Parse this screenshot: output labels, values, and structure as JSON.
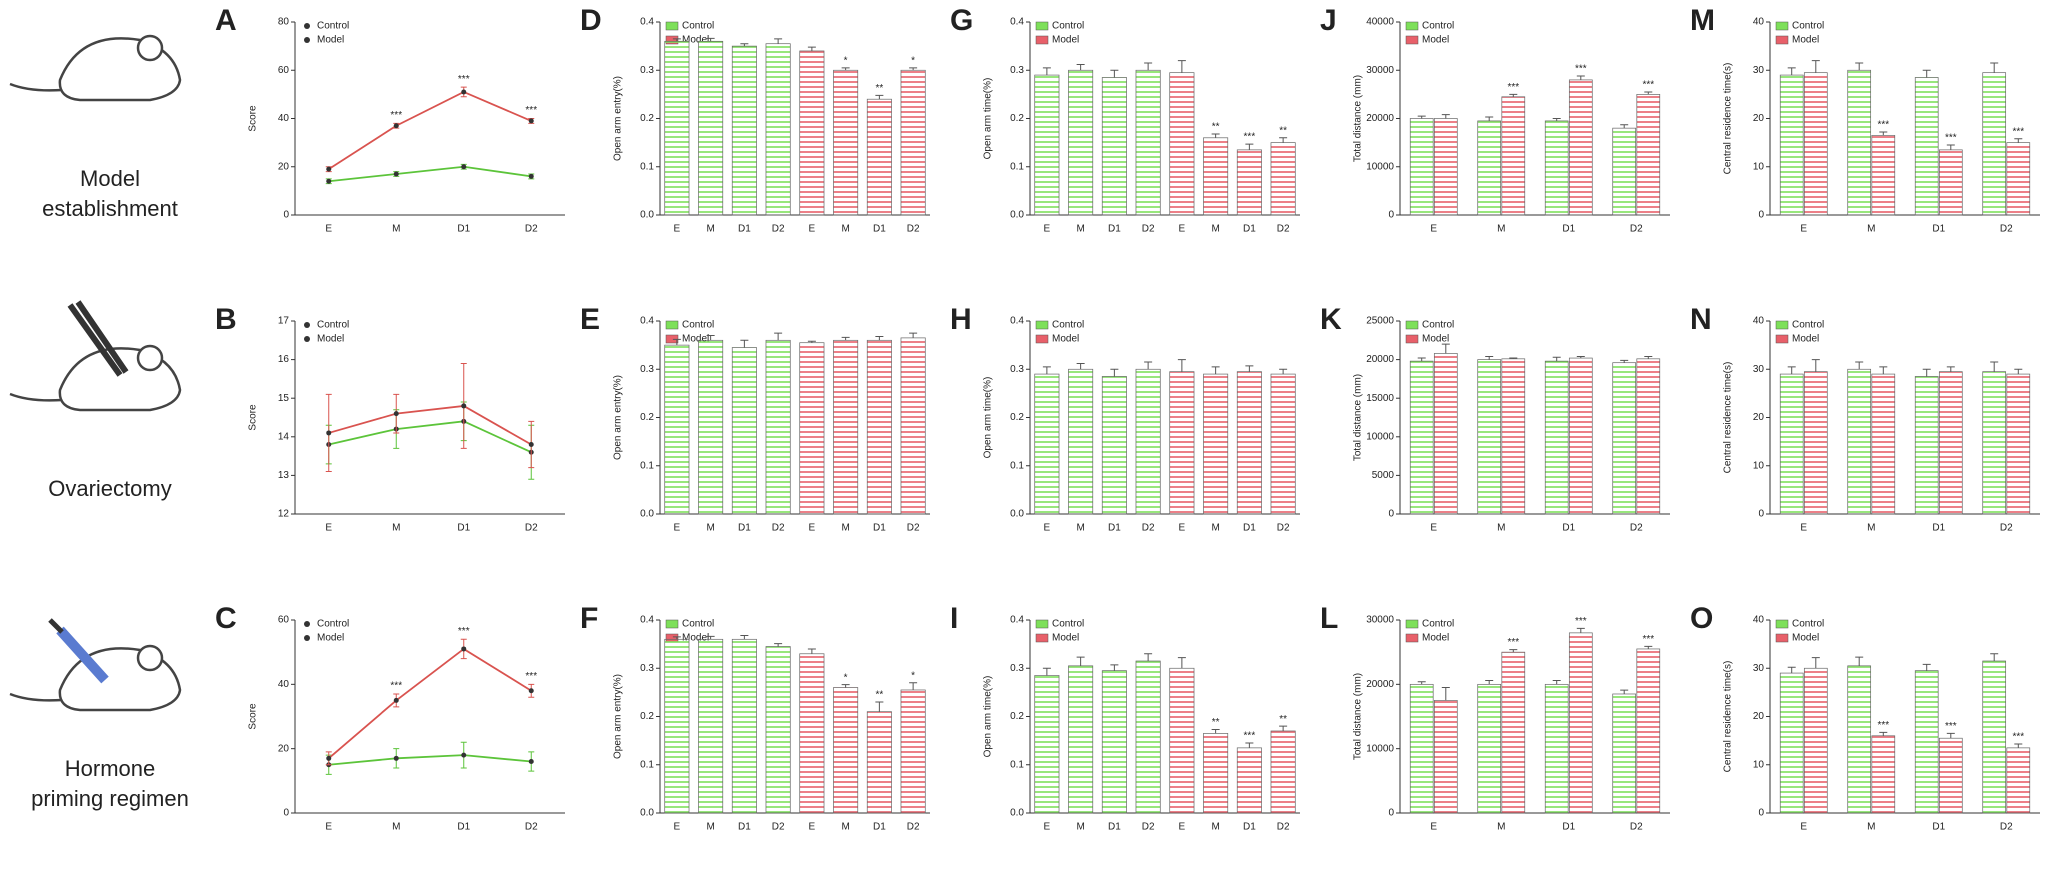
{
  "row_labels": [
    [
      "Model",
      "establishment"
    ],
    [
      "Ovariectomy"
    ],
    [
      "Hormone",
      "priming regimen"
    ]
  ],
  "chart_data": [
    {
      "panel": "A",
      "type": "line",
      "ylabel": "Score",
      "categories": [
        "E",
        "M",
        "D1",
        "D2"
      ],
      "ylim": [
        0,
        80
      ],
      "yticks": [
        0,
        20,
        40,
        60,
        80
      ],
      "series": [
        {
          "name": "Control",
          "color": "#5cc43a",
          "values": [
            14,
            17,
            20,
            16
          ],
          "errors": [
            1,
            1,
            1,
            1
          ],
          "significance": [
            null,
            null,
            null,
            null
          ]
        },
        {
          "name": "Model",
          "color": "#d9534f",
          "values": [
            19,
            37,
            51,
            39
          ],
          "errors": [
            1,
            1,
            2,
            1
          ],
          "significance": [
            null,
            "***",
            "***",
            "***"
          ]
        }
      ]
    },
    {
      "panel": "B",
      "type": "line",
      "ylabel": "Score",
      "categories": [
        "E",
        "M",
        "D1",
        "D2"
      ],
      "ylim": [
        12,
        17
      ],
      "yticks": [
        12,
        13,
        14,
        15,
        16,
        17
      ],
      "series": [
        {
          "name": "Control",
          "color": "#5cc43a",
          "values": [
            13.8,
            14.2,
            14.4,
            13.6
          ],
          "errors": [
            0.5,
            0.5,
            0.5,
            0.7
          ],
          "significance": [
            null,
            null,
            null,
            null
          ]
        },
        {
          "name": "Model",
          "color": "#d9534f",
          "values": [
            14.1,
            14.6,
            14.8,
            13.8
          ],
          "errors": [
            1.0,
            0.5,
            1.1,
            0.6
          ],
          "significance": [
            null,
            null,
            null,
            null
          ]
        }
      ]
    },
    {
      "panel": "C",
      "type": "line",
      "ylabel": "Score",
      "categories": [
        "E",
        "M",
        "D1",
        "D2"
      ],
      "ylim": [
        0,
        60
      ],
      "yticks": [
        0,
        20,
        40,
        60
      ],
      "series": [
        {
          "name": "Control",
          "color": "#5cc43a",
          "values": [
            15,
            17,
            18,
            16
          ],
          "errors": [
            3,
            3,
            4,
            3
          ],
          "significance": [
            null,
            null,
            null,
            null
          ]
        },
        {
          "name": "Model",
          "color": "#d9534f",
          "values": [
            17,
            35,
            51,
            38
          ],
          "errors": [
            2,
            2,
            3,
            2
          ],
          "significance": [
            null,
            "***",
            "***",
            "***"
          ]
        }
      ]
    },
    {
      "panel": "D",
      "type": "bar",
      "bar_layout": "series-blocks",
      "ylabel": "Open arm entry(%)",
      "categories": [
        "E",
        "M",
        "D1",
        "D2"
      ],
      "ylim": [
        0,
        0.4
      ],
      "yticks": [
        {
          "value": 0,
          "label": "0.0"
        },
        0.1,
        0.2,
        0.3,
        0.4
      ],
      "series": [
        {
          "name": "Control",
          "color": "#7ee05a",
          "values": [
            0.36,
            0.36,
            0.35,
            0.355
          ],
          "errors": [
            0.005,
            0.006,
            0.005,
            0.01
          ],
          "significance": [
            null,
            null,
            null,
            null
          ]
        },
        {
          "name": "Model",
          "color": "#e8606a",
          "values": [
            0.34,
            0.3,
            0.24,
            0.3
          ],
          "errors": [
            0.008,
            0.005,
            0.008,
            0.005
          ],
          "significance": [
            null,
            "*",
            "**",
            "*"
          ]
        }
      ]
    },
    {
      "panel": "E",
      "type": "bar",
      "bar_layout": "series-blocks",
      "ylabel": "Open arm entry(%)",
      "categories": [
        "E",
        "M",
        "D1",
        "D2"
      ],
      "ylim": [
        0,
        0.4
      ],
      "yticks": [
        {
          "value": 0,
          "label": "0.0"
        },
        0.1,
        0.2,
        0.3,
        0.4
      ],
      "series": [
        {
          "name": "Control",
          "color": "#7ee05a",
          "values": [
            0.35,
            0.36,
            0.345,
            0.36
          ],
          "errors": [
            0.012,
            0.01,
            0.015,
            0.015
          ],
          "significance": [
            null,
            null,
            null,
            null
          ]
        },
        {
          "name": "Model",
          "color": "#e8606a",
          "values": [
            0.355,
            0.36,
            0.36,
            0.365
          ],
          "errors": [
            0.003,
            0.006,
            0.008,
            0.01
          ],
          "significance": [
            null,
            null,
            null,
            null
          ]
        }
      ]
    },
    {
      "panel": "F",
      "type": "bar",
      "bar_layout": "series-blocks",
      "ylabel": "Open arm entry(%)",
      "categories": [
        "E",
        "M",
        "D1",
        "D2"
      ],
      "ylim": [
        0,
        0.4
      ],
      "yticks": [
        {
          "value": 0,
          "label": "0.0"
        },
        0.1,
        0.2,
        0.3,
        0.4
      ],
      "series": [
        {
          "name": "Control",
          "color": "#7ee05a",
          "values": [
            0.36,
            0.36,
            0.36,
            0.345
          ],
          "errors": [
            0.005,
            0.006,
            0.008,
            0.006
          ],
          "significance": [
            null,
            null,
            null,
            null
          ]
        },
        {
          "name": "Model",
          "color": "#e8606a",
          "values": [
            0.33,
            0.26,
            0.21,
            0.255
          ],
          "errors": [
            0.01,
            0.006,
            0.02,
            0.015
          ],
          "significance": [
            null,
            "*",
            "**",
            "*"
          ]
        }
      ]
    },
    {
      "panel": "G",
      "type": "bar",
      "bar_layout": "series-blocks",
      "ylabel": "Open arm time(%)",
      "categories": [
        "E",
        "M",
        "D1",
        "D2"
      ],
      "ylim": [
        0,
        0.4
      ],
      "yticks": [
        {
          "value": 0,
          "label": "0.0"
        },
        0.1,
        0.2,
        0.3,
        0.4
      ],
      "series": [
        {
          "name": "Control",
          "color": "#7ee05a",
          "values": [
            0.29,
            0.3,
            0.285,
            0.3
          ],
          "errors": [
            0.015,
            0.012,
            0.015,
            0.015
          ],
          "significance": [
            null,
            null,
            null,
            null
          ]
        },
        {
          "name": "Model",
          "color": "#e8606a",
          "values": [
            0.295,
            0.16,
            0.135,
            0.15
          ],
          "errors": [
            0.025,
            0.008,
            0.012,
            0.01
          ],
          "significance": [
            null,
            "**",
            "***",
            "**"
          ]
        }
      ]
    },
    {
      "panel": "H",
      "type": "bar",
      "bar_layout": "series-blocks",
      "ylabel": "Open arm time(%)",
      "categories": [
        "E",
        "M",
        "D1",
        "D2"
      ],
      "ylim": [
        0,
        0.4
      ],
      "yticks": [
        {
          "value": 0,
          "label": "0.0"
        },
        0.1,
        0.2,
        0.3,
        0.4
      ],
      "series": [
        {
          "name": "Control",
          "color": "#7ee05a",
          "values": [
            0.29,
            0.3,
            0.285,
            0.3
          ],
          "errors": [
            0.015,
            0.012,
            0.015,
            0.015
          ],
          "significance": [
            null,
            null,
            null,
            null
          ]
        },
        {
          "name": "Model",
          "color": "#e8606a",
          "values": [
            0.295,
            0.29,
            0.295,
            0.29
          ],
          "errors": [
            0.025,
            0.015,
            0.012,
            0.01
          ],
          "significance": [
            null,
            null,
            null,
            null
          ]
        }
      ]
    },
    {
      "panel": "I",
      "type": "bar",
      "bar_layout": "series-blocks",
      "ylabel": "Open arm time(%)",
      "categories": [
        "E",
        "M",
        "D1",
        "D2"
      ],
      "ylim": [
        0,
        0.4
      ],
      "yticks": [
        {
          "value": 0,
          "label": "0.0"
        },
        0.1,
        0.2,
        0.3,
        0.4
      ],
      "series": [
        {
          "name": "Control",
          "color": "#7ee05a",
          "values": [
            0.285,
            0.305,
            0.295,
            0.315
          ],
          "errors": [
            0.015,
            0.018,
            0.012,
            0.015
          ],
          "significance": [
            null,
            null,
            null,
            null
          ]
        },
        {
          "name": "Model",
          "color": "#e8606a",
          "values": [
            0.3,
            0.165,
            0.135,
            0.17
          ],
          "errors": [
            0.022,
            0.008,
            0.01,
            0.01
          ],
          "significance": [
            null,
            "**",
            "***",
            "**"
          ]
        }
      ]
    },
    {
      "panel": "J",
      "type": "bar",
      "bar_layout": "paired",
      "ylabel": "Total distance (mm)",
      "categories": [
        "E",
        "M",
        "D1",
        "D2"
      ],
      "ylim": [
        0,
        40000
      ],
      "yticks": [
        0,
        10000,
        20000,
        30000,
        40000
      ],
      "series": [
        {
          "name": "Control",
          "color": "#7ee05a",
          "values": [
            20000,
            19500,
            19500,
            18000
          ],
          "errors": [
            500,
            800,
            500,
            700
          ],
          "significance": [
            null,
            null,
            null,
            null
          ]
        },
        {
          "name": "Model",
          "color": "#e8606a",
          "values": [
            20000,
            24500,
            28000,
            25000
          ],
          "errors": [
            800,
            500,
            800,
            500
          ],
          "significance": [
            null,
            "***",
            "***",
            "***"
          ]
        }
      ]
    },
    {
      "panel": "K",
      "type": "bar",
      "bar_layout": "paired",
      "ylabel": "Total distance (mm)",
      "categories": [
        "E",
        "M",
        "D1",
        "D2"
      ],
      "ylim": [
        0,
        25000
      ],
      "yticks": [
        0,
        5000,
        10000,
        15000,
        20000,
        25000
      ],
      "series": [
        {
          "name": "Control",
          "color": "#7ee05a",
          "values": [
            19800,
            20000,
            19800,
            19600
          ],
          "errors": [
            400,
            400,
            500,
            300
          ],
          "significance": [
            null,
            null,
            null,
            null
          ]
        },
        {
          "name": "Model",
          "color": "#e8606a",
          "values": [
            20800,
            20100,
            20200,
            20100
          ],
          "errors": [
            1200,
            100,
            200,
            300
          ],
          "significance": [
            null,
            null,
            null,
            null
          ]
        }
      ]
    },
    {
      "panel": "L",
      "type": "bar",
      "bar_layout": "paired",
      "ylabel": "Total distance (mm)",
      "categories": [
        "E",
        "M",
        "D1",
        "D2"
      ],
      "ylim": [
        0,
        30000
      ],
      "yticks": [
        0,
        10000,
        20000,
        30000
      ],
      "series": [
        {
          "name": "Control",
          "color": "#7ee05a",
          "values": [
            20000,
            20000,
            20000,
            18500
          ],
          "errors": [
            400,
            600,
            600,
            600
          ],
          "significance": [
            null,
            null,
            null,
            null
          ]
        },
        {
          "name": "Model",
          "color": "#e8606a",
          "values": [
            17500,
            25000,
            28000,
            25500
          ],
          "errors": [
            2000,
            400,
            700,
            400
          ],
          "significance": [
            null,
            "***",
            "***",
            "***"
          ]
        }
      ]
    },
    {
      "panel": "M",
      "type": "bar",
      "bar_layout": "paired",
      "ylabel": "Central residence time(s)",
      "categories": [
        "E",
        "M",
        "D1",
        "D2"
      ],
      "ylim": [
        0,
        40
      ],
      "yticks": [
        0,
        10,
        20,
        30,
        40
      ],
      "series": [
        {
          "name": "Control",
          "color": "#7ee05a",
          "values": [
            29,
            30,
            28.5,
            29.5
          ],
          "errors": [
            1.5,
            1.5,
            1.5,
            2
          ],
          "significance": [
            null,
            null,
            null,
            null
          ]
        },
        {
          "name": "Model",
          "color": "#e8606a",
          "values": [
            29.5,
            16.5,
            13.5,
            15
          ],
          "errors": [
            2.5,
            0.7,
            1,
            0.8
          ],
          "significance": [
            null,
            "***",
            "***",
            "***"
          ]
        }
      ]
    },
    {
      "panel": "N",
      "type": "bar",
      "bar_layout": "paired",
      "ylabel": "Central residence time(s)",
      "categories": [
        "E",
        "M",
        "D1",
        "D2"
      ],
      "ylim": [
        0,
        40
      ],
      "yticks": [
        0,
        10,
        20,
        30,
        40
      ],
      "series": [
        {
          "name": "Control",
          "color": "#7ee05a",
          "values": [
            29,
            30,
            28.5,
            29.5
          ],
          "errors": [
            1.5,
            1.5,
            1.5,
            2
          ],
          "significance": [
            null,
            null,
            null,
            null
          ]
        },
        {
          "name": "Model",
          "color": "#e8606a",
          "values": [
            29.5,
            29,
            29.5,
            29
          ],
          "errors": [
            2.5,
            1.5,
            1,
            1
          ],
          "significance": [
            null,
            null,
            null,
            null
          ]
        }
      ]
    },
    {
      "panel": "O",
      "type": "bar",
      "bar_layout": "paired",
      "ylabel": "Central residence time(s)",
      "categories": [
        "E",
        "M",
        "D1",
        "D2"
      ],
      "ylim": [
        0,
        40
      ],
      "yticks": [
        0,
        10,
        20,
        30,
        40
      ],
      "series": [
        {
          "name": "Control",
          "color": "#7ee05a",
          "values": [
            29,
            30.5,
            29.5,
            31.5
          ],
          "errors": [
            1.2,
            1.8,
            1.3,
            1.5
          ],
          "significance": [
            null,
            null,
            null,
            null
          ]
        },
        {
          "name": "Model",
          "color": "#e8606a",
          "values": [
            30,
            16,
            15.5,
            13.5
          ],
          "errors": [
            2.2,
            0.7,
            1,
            0.8
          ],
          "significance": [
            null,
            "***",
            "***",
            "***"
          ]
        }
      ]
    }
  ]
}
